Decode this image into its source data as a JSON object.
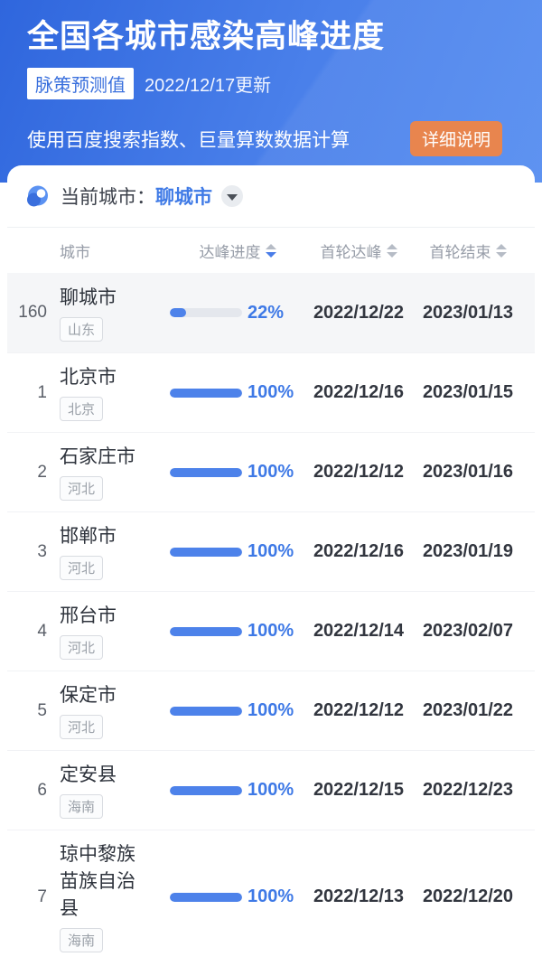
{
  "header": {
    "title": "全国各城市感染高峰进度",
    "badge": "脉策预测值",
    "updated": "2022/12/17更新",
    "subtitle": "使用百度搜索指数、巨量算数数据计算",
    "detail_button": "详细说明"
  },
  "colors": {
    "hero_gradient_start": "#2f66dd",
    "hero_gradient_end": "#548cf0",
    "accent_blue": "#3f7ae6",
    "progress_fill": "#4d82ea",
    "progress_track": "#e4e7ed",
    "detail_button_bg": "#e8854e",
    "highlight_row_bg": "#f5f6f8"
  },
  "selector": {
    "icon": "location-pin-icon",
    "label": "当前城市：",
    "current_city": "聊城市"
  },
  "table": {
    "columns": [
      {
        "label": "城市",
        "sortable": false
      },
      {
        "label": "达峰进度",
        "sortable": true,
        "sort": "desc"
      },
      {
        "label": "首轮达峰",
        "sortable": true,
        "sort": "none"
      },
      {
        "label": "首轮结束",
        "sortable": true,
        "sort": "none"
      }
    ],
    "rows": [
      {
        "rank": "160",
        "city": "聊城市",
        "province": "山东",
        "progress": 22,
        "progress_label": "22%",
        "peak": "2022/12/22",
        "end": "2023/01/13",
        "highlight": true
      },
      {
        "rank": "1",
        "city": "北京市",
        "province": "北京",
        "progress": 100,
        "progress_label": "100%",
        "peak": "2022/12/16",
        "end": "2023/01/15",
        "highlight": false
      },
      {
        "rank": "2",
        "city": "石家庄市",
        "province": "河北",
        "progress": 100,
        "progress_label": "100%",
        "peak": "2022/12/12",
        "end": "2023/01/16",
        "highlight": false
      },
      {
        "rank": "3",
        "city": "邯郸市",
        "province": "河北",
        "progress": 100,
        "progress_label": "100%",
        "peak": "2022/12/16",
        "end": "2023/01/19",
        "highlight": false
      },
      {
        "rank": "4",
        "city": "邢台市",
        "province": "河北",
        "progress": 100,
        "progress_label": "100%",
        "peak": "2022/12/14",
        "end": "2023/02/07",
        "highlight": false
      },
      {
        "rank": "5",
        "city": "保定市",
        "province": "河北",
        "progress": 100,
        "progress_label": "100%",
        "peak": "2022/12/12",
        "end": "2023/01/22",
        "highlight": false
      },
      {
        "rank": "6",
        "city": "定安县",
        "province": "海南",
        "progress": 100,
        "progress_label": "100%",
        "peak": "2022/12/15",
        "end": "2022/12/23",
        "highlight": false
      },
      {
        "rank": "7",
        "city": "琼中黎族苗族自治县",
        "province": "海南",
        "progress": 100,
        "progress_label": "100%",
        "peak": "2022/12/13",
        "end": "2022/12/20",
        "highlight": false
      }
    ]
  }
}
